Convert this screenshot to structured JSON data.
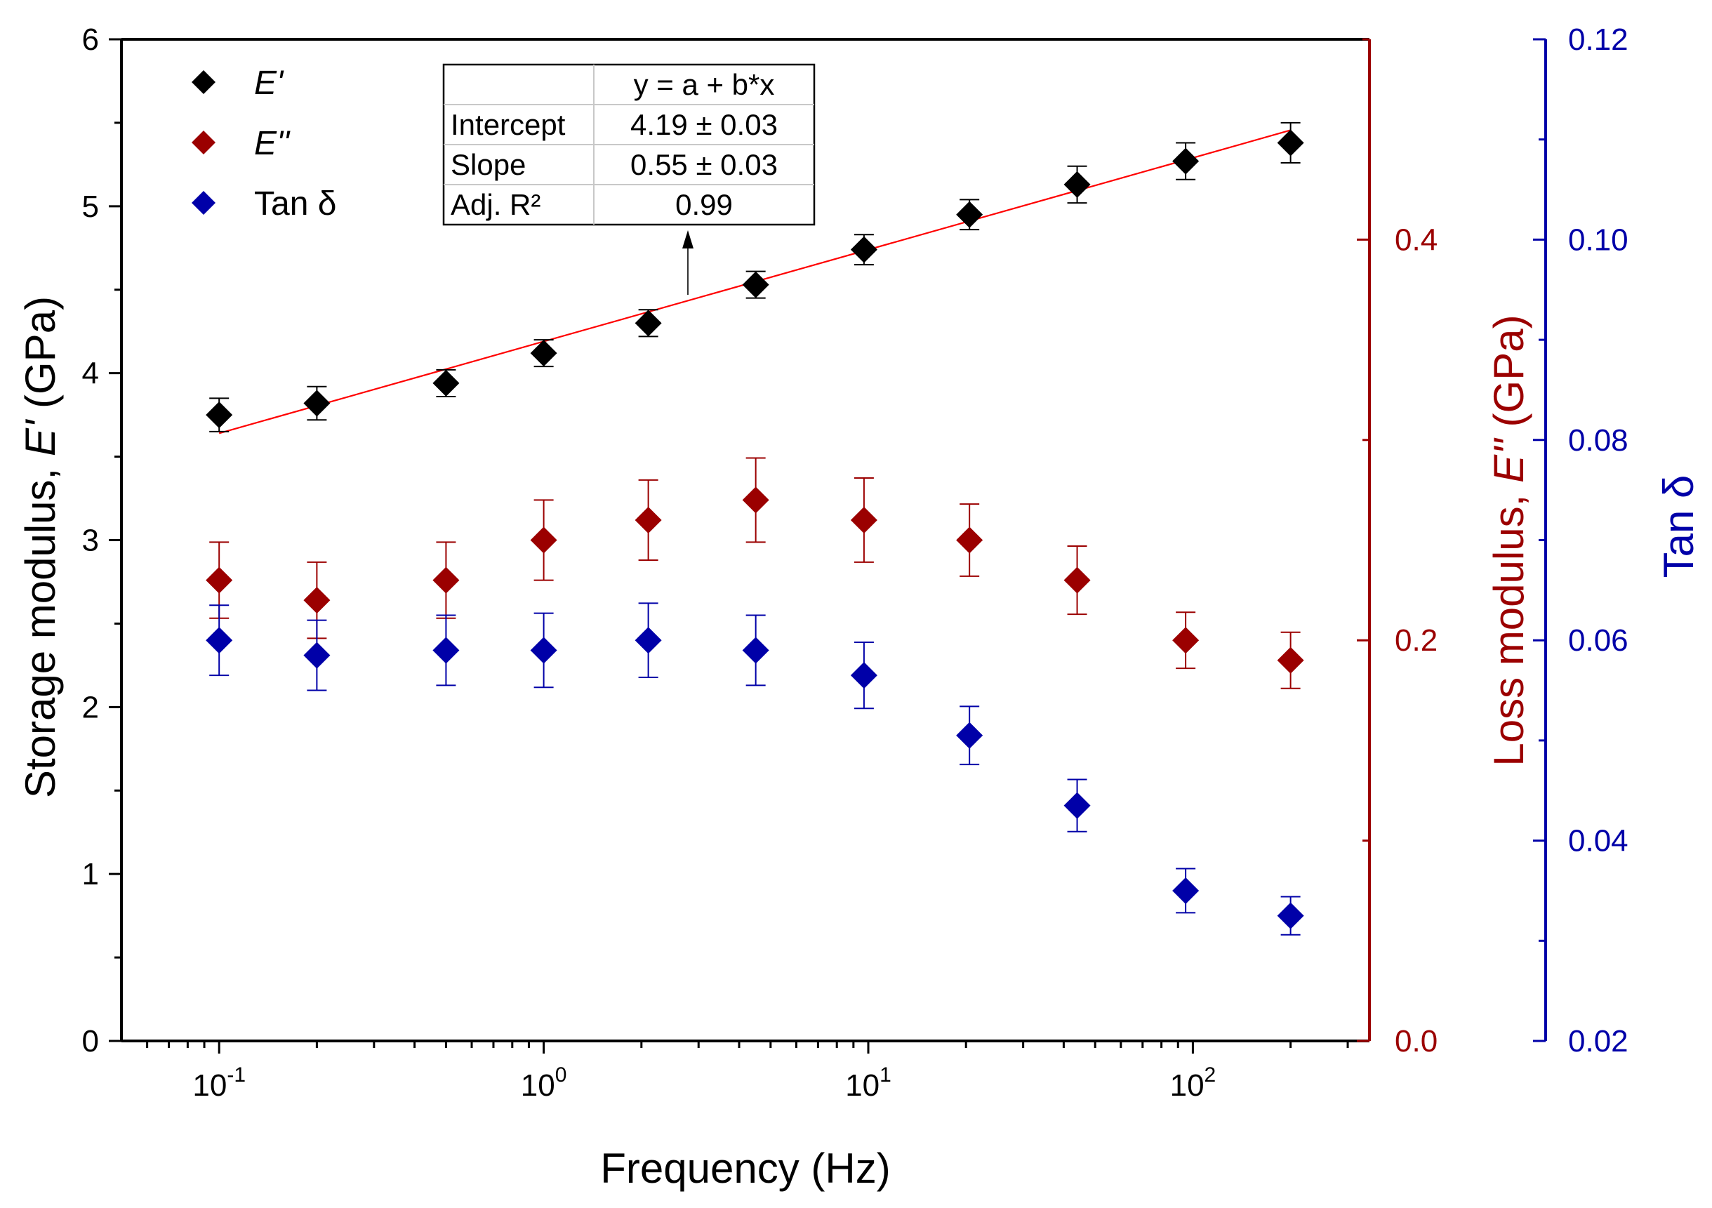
{
  "chart_data": {
    "type": "scatter",
    "x_scale": "log",
    "x": [
      0.1,
      0.2,
      0.5,
      1,
      2.1,
      4.5,
      9.7,
      20.5,
      44,
      95,
      200
    ],
    "xlim": [
      0.05,
      350
    ],
    "xlabel": "Frequency (Hz)",
    "x_ticks": [
      {
        "value": 0.1,
        "base": "10",
        "exp": "-1"
      },
      {
        "value": 1,
        "base": "10",
        "exp": "0"
      },
      {
        "value": 10,
        "base": "10",
        "exp": "1"
      },
      {
        "value": 100,
        "base": "10",
        "exp": "2"
      }
    ],
    "axes": {
      "left": {
        "label_prefix": "Storage modulus, ",
        "label_symbol": "E'",
        "label_suffix": " (GPa)",
        "ylim": [
          0,
          6
        ],
        "ticks": [
          "0",
          "1",
          "2",
          "3",
          "4",
          "5",
          "6"
        ],
        "color": "#000000"
      },
      "right": {
        "label_prefix": "Loss modulus, ",
        "label_symbol": "E''",
        "label_suffix": " (GPa)",
        "ylim": [
          0,
          0.5
        ],
        "ticks": [
          "0.0",
          "0.2",
          "0.4"
        ],
        "tick_values": [
          0,
          0.2,
          0.4
        ],
        "color": "#9b0000"
      },
      "far_right": {
        "label": "Tan δ",
        "ylim": [
          0.02,
          0.12
        ],
        "ticks": [
          "0.02",
          "0.04",
          "0.06",
          "0.08",
          "0.10",
          "0.12"
        ],
        "tick_values": [
          0.02,
          0.04,
          0.06,
          0.08,
          0.1,
          0.12
        ],
        "color": "#0000a8"
      }
    },
    "series": [
      {
        "name": "E'",
        "axis": "left",
        "color": "#000000",
        "values": [
          3.75,
          3.82,
          3.94,
          4.12,
          4.3,
          4.53,
          4.74,
          4.95,
          5.13,
          5.27,
          5.38
        ],
        "error": [
          0.1,
          0.1,
          0.08,
          0.08,
          0.08,
          0.08,
          0.09,
          0.09,
          0.11,
          0.11,
          0.12
        ]
      },
      {
        "name": "E''",
        "axis": "right",
        "color": "#9b0000",
        "values": [
          0.23,
          0.22,
          0.23,
          0.25,
          0.26,
          0.27,
          0.26,
          0.25,
          0.23,
          0.2,
          0.19
        ],
        "error": [
          0.019,
          0.019,
          0.019,
          0.02,
          0.02,
          0.021,
          0.021,
          0.018,
          0.017,
          0.014,
          0.014
        ]
      },
      {
        "name": "Tan δ",
        "axis": "far_right",
        "color": "#0000a8",
        "values": [
          0.06,
          0.0585,
          0.059,
          0.059,
          0.06,
          0.059,
          0.0565,
          0.0505,
          0.0435,
          0.035,
          0.0325
        ],
        "error": [
          0.0035,
          0.0035,
          0.0035,
          0.0037,
          0.0037,
          0.0035,
          0.0033,
          0.0029,
          0.0026,
          0.0022,
          0.0019
        ]
      }
    ],
    "fit": {
      "series": "E'",
      "x_range": [
        0.1,
        200
      ],
      "intercept": 4.19,
      "slope": 0.55,
      "color": "#ff0000",
      "table": {
        "header": [
          "",
          "y = a + b*x"
        ],
        "rows": [
          [
            "Intercept",
            "4.19 ± 0.03"
          ],
          [
            "Slope",
            "0.55 ± 0.03"
          ],
          [
            "Adj. R²",
            "0.99"
          ]
        ]
      }
    },
    "legend": {
      "position": "top-left",
      "entries": [
        {
          "label": "E'",
          "italic": true,
          "color": "#000000"
        },
        {
          "label": "E''",
          "italic": true,
          "color": "#9b0000"
        },
        {
          "label": "Tan δ",
          "italic": false,
          "color": "#0000a8"
        }
      ]
    },
    "grid": false
  }
}
